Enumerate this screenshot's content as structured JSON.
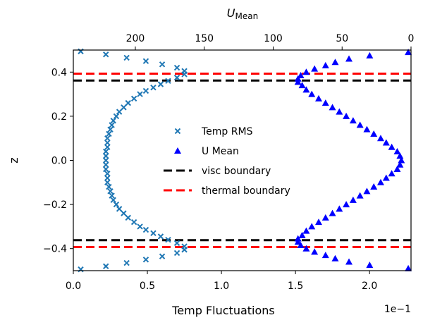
{
  "chart_data": {
    "type": "scatter",
    "title": "",
    "xlabel": "Temp Fluctuations",
    "xlabel_top_main": "U",
    "xlabel_top_sub": "Mean",
    "ylabel": "z",
    "x_offset_label": "1e−1",
    "xlim": [
      0.0,
      2.28
    ],
    "xlim_top": [
      245,
      0
    ],
    "ylim": [
      -0.5,
      0.5
    ],
    "x_ticks": [
      0.0,
      0.5,
      1.0,
      1.5,
      2.0
    ],
    "x_tick_labels": [
      "0.0",
      "0.5",
      "1.0",
      "1.5",
      "2.0"
    ],
    "x_top_ticks": [
      200,
      150,
      100,
      50,
      0
    ],
    "x_top_tick_labels": [
      "200",
      "150",
      "100",
      "50",
      "0"
    ],
    "y_ticks": [
      -0.4,
      -0.2,
      0.0,
      0.2,
      0.4
    ],
    "y_tick_labels": [
      "−0.4",
      "−0.2",
      "0.0",
      "0.2",
      "0.4"
    ],
    "legend_position": "center",
    "legend": [
      {
        "label": "Temp RMS",
        "marker": "x",
        "color": "#1f77b4"
      },
      {
        "label": "U Mean",
        "marker": "triangle",
        "color": "#0000ff"
      },
      {
        "label": "visc boundary",
        "marker": "dashed-line",
        "color": "#000000"
      },
      {
        "label": "thermal boundary",
        "marker": "dashed-line",
        "color": "#ff0000"
      }
    ],
    "series": [
      {
        "name": "Temp RMS",
        "axis": "bottom",
        "color": "#1f77b4",
        "marker": "x",
        "z": [
          0.494,
          0.48,
          0.465,
          0.45,
          0.435,
          0.42,
          0.405,
          0.39,
          0.375,
          0.36,
          0.345,
          0.33,
          0.315,
          0.3,
          0.28,
          0.26,
          0.24,
          0.22,
          0.2,
          0.18,
          0.16,
          0.14,
          0.12,
          0.1,
          0.08,
          0.06,
          0.04,
          0.02,
          0.0,
          -0.02,
          -0.04,
          -0.06,
          -0.08,
          -0.1,
          -0.12,
          -0.14,
          -0.16,
          -0.18,
          -0.2,
          -0.22,
          -0.24,
          -0.26,
          -0.28,
          -0.3,
          -0.315,
          -0.33,
          -0.345,
          -0.36,
          -0.375,
          -0.39,
          -0.405,
          -0.42,
          -0.435,
          -0.45,
          -0.465,
          -0.48,
          -0.494
        ],
        "x": [
          0.05,
          0.22,
          0.36,
          0.49,
          0.6,
          0.7,
          0.75,
          0.75,
          0.7,
          0.64,
          0.59,
          0.54,
          0.49,
          0.45,
          0.41,
          0.37,
          0.34,
          0.31,
          0.29,
          0.27,
          0.26,
          0.25,
          0.24,
          0.23,
          0.23,
          0.23,
          0.22,
          0.22,
          0.22,
          0.22,
          0.22,
          0.23,
          0.23,
          0.23,
          0.24,
          0.25,
          0.26,
          0.27,
          0.29,
          0.31,
          0.34,
          0.37,
          0.41,
          0.45,
          0.49,
          0.54,
          0.59,
          0.64,
          0.7,
          0.75,
          0.75,
          0.7,
          0.6,
          0.49,
          0.36,
          0.22,
          0.05
        ]
      },
      {
        "name": "U Mean",
        "axis": "top",
        "color": "#0000ff",
        "marker": "triangle",
        "z": [
          0.49,
          0.475,
          0.46,
          0.445,
          0.43,
          0.415,
          0.4,
          0.385,
          0.37,
          0.355,
          0.34,
          0.32,
          0.3,
          0.28,
          0.26,
          0.24,
          0.22,
          0.2,
          0.18,
          0.16,
          0.14,
          0.12,
          0.1,
          0.08,
          0.06,
          0.04,
          0.02,
          0.0,
          -0.02,
          -0.04,
          -0.06,
          -0.08,
          -0.1,
          -0.12,
          -0.14,
          -0.16,
          -0.18,
          -0.2,
          -0.22,
          -0.24,
          -0.26,
          -0.28,
          -0.3,
          -0.32,
          -0.34,
          -0.355,
          -0.37,
          -0.385,
          -0.4,
          -0.415,
          -0.43,
          -0.445,
          -0.46,
          -0.475,
          -0.49
        ],
        "x": [
          2,
          30,
          45,
          55,
          62,
          70,
          76,
          80,
          82,
          82,
          79,
          76,
          72,
          67,
          62,
          57,
          52,
          47,
          42,
          37,
          32,
          27,
          22,
          18,
          14,
          10,
          8,
          7,
          8,
          10,
          14,
          18,
          22,
          27,
          32,
          37,
          42,
          47,
          52,
          57,
          62,
          67,
          72,
          76,
          79,
          82,
          82,
          80,
          76,
          70,
          62,
          55,
          45,
          30,
          2
        ]
      }
    ],
    "hlines": [
      {
        "name": "visc boundary",
        "y": [
          0.362,
          -0.362
        ],
        "color": "#000000"
      },
      {
        "name": "thermal boundary",
        "y": [
          0.393,
          -0.393
        ],
        "color": "#ff0000"
      }
    ]
  }
}
